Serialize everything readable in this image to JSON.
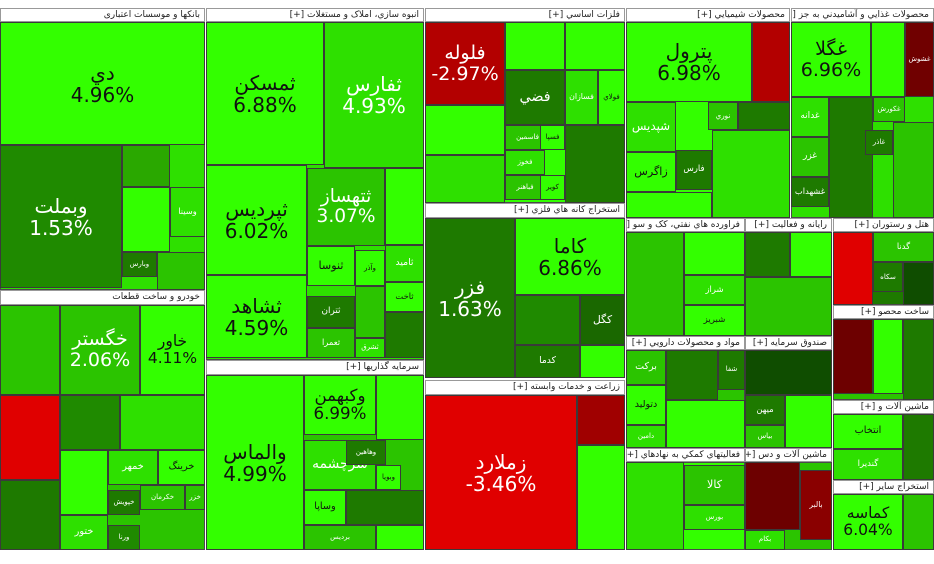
{
  "sectors": [
    {
      "header": "بانکها و موسسات اعتباری",
      "tiles": [
        {
          "label": "دي",
          "change": "4.96%",
          "color": "#33ff00"
        },
        {
          "label": "وبملت",
          "change": "1.53%",
          "color": "#1f8a00"
        },
        {
          "label": "وسينا",
          "color": "#2ee000"
        },
        {
          "label": "وبارس",
          "color": "#1e7a00"
        }
      ]
    },
    {
      "header": "خودرو و ساخت قطعات",
      "tiles": [
        {
          "label": "خگستر",
          "change": "2.06%",
          "color": "#2bc400"
        },
        {
          "label": "خاور",
          "change": "4.11%",
          "color": "#33ff00"
        },
        {
          "label": "خمهر",
          "color": "#2ee000"
        },
        {
          "label": "خرينگ",
          "color": "#33ff00"
        },
        {
          "label": "خکرمان",
          "color": "#2bc400"
        },
        {
          "label": "خپويش",
          "color": "#1e7a00"
        },
        {
          "label": "ختور",
          "color": "#2ee000"
        },
        {
          "label": "ورنا",
          "color": "#1f8a00"
        },
        {
          "label": "خزر",
          "color": "#2bc400"
        }
      ]
    },
    {
      "header": "انبوه سازي، املاک و مستغلات [+]",
      "tiles": [
        {
          "label": "ثمسکن",
          "change": "6.88%",
          "color": "#33ff00"
        },
        {
          "label": "ثفارس",
          "change": "4.93%",
          "color": "#2ee000"
        },
        {
          "label": "ثپرديس",
          "change": "6.02%",
          "color": "#33ff00"
        },
        {
          "label": "ثشاهد",
          "change": "4.59%",
          "color": "#33ff00"
        },
        {
          "label": "ثتهساز",
          "change": "3.07%",
          "color": "#2bc400"
        },
        {
          "label": "ثنوسا",
          "color": "#33ff00"
        },
        {
          "label": "ثتران",
          "color": "#1e7a00"
        },
        {
          "label": "ثامید",
          "color": "#2ee000"
        },
        {
          "label": "ثاخت",
          "color": "#33ff00"
        },
        {
          "label": "ثعمرا",
          "color": "#2bc400"
        },
        {
          "label": "ثشرق",
          "color": "#2ee000"
        },
        {
          "label": "وآذر",
          "color": "#33ff00"
        }
      ]
    },
    {
      "header": "سرمايه گذاريها [+]",
      "tiles": [
        {
          "label": "والماس",
          "change": "4.99%",
          "color": "#33ff00"
        },
        {
          "label": "وکبهمن",
          "change": "6.99%",
          "color": "#33ff00"
        },
        {
          "label": "سرچشمه",
          "color": "#2ee000"
        },
        {
          "label": "وساپا",
          "color": "#33ff00"
        },
        {
          "label": "برديس",
          "color": "#2bc400"
        },
        {
          "label": "وهاهين",
          "color": "#1e7a00"
        },
        {
          "label": "وبويا",
          "color": "#33ff00"
        }
      ]
    },
    {
      "header": "فلزات اساسي [+]",
      "tiles": [
        {
          "label": "فلوله",
          "change": "-2.97%",
          "color": "#b30000"
        },
        {
          "label": "فضي",
          "color": "#1e7a00"
        },
        {
          "label": "فسازان",
          "color": "#2ee000"
        },
        {
          "label": "فولاي",
          "color": "#33ff00"
        },
        {
          "label": "فاسمين",
          "color": "#2bc400"
        },
        {
          "label": "فسپا",
          "color": "#33ff00"
        },
        {
          "label": "فخوز",
          "color": "#2ee000"
        },
        {
          "label": "فباهنر",
          "color": "#2bc400"
        },
        {
          "label": "کوير",
          "color": "#33ff00"
        }
      ]
    },
    {
      "header": "استخراج کانه هاي فلزي [+]",
      "tiles": [
        {
          "label": "فزر",
          "change": "1.63%",
          "color": "#1e7a00"
        },
        {
          "label": "کاما",
          "change": "6.86%",
          "color": "#33ff00"
        },
        {
          "label": "کگل",
          "color": "#1a6800"
        },
        {
          "label": "کدما",
          "color": "#1e7a00"
        }
      ]
    },
    {
      "header": "زراعت و خدمات وابسته [+]",
      "tiles": [
        {
          "label": "زملارد",
          "change": "-3.46%",
          "color": "#e00000"
        }
      ]
    },
    {
      "header": "محصولات شيميايي [+]",
      "tiles": [
        {
          "label": "پترول",
          "change": "6.98%",
          "color": "#33ff00"
        },
        {
          "label": "شپديس",
          "color": "#2ee000"
        },
        {
          "label": "زاگرس",
          "color": "#33ff00"
        },
        {
          "label": "فارس",
          "color": "#1e7a00"
        },
        {
          "label": "نوري",
          "color": "#2bc400"
        }
      ]
    },
    {
      "header": "فراورده هاي نفتي، کک و سو [+]",
      "tiles": [
        {
          "label": "شراز",
          "color": "#2ee000"
        },
        {
          "label": "شبريز",
          "color": "#33ff00"
        }
      ]
    },
    {
      "header": "مواد و محصولات دارويي [+]",
      "tiles": [
        {
          "label": "برکت",
          "color": "#2bc400"
        },
        {
          "label": "دتوليد",
          "color": "#33ff00"
        },
        {
          "label": "دامين",
          "color": "#2ee000"
        },
        {
          "label": "شفا",
          "color": "#1e7a00"
        }
      ]
    },
    {
      "header": "فعاليتهاي کمکي به نهادهاي [+]",
      "tiles": [
        {
          "label": "کالا",
          "color": "#2bc400"
        },
        {
          "label": "بورس",
          "color": "#2ee000"
        }
      ]
    },
    {
      "header": "رايانه و فعاليت [+]",
      "tiles": []
    },
    {
      "header": "صندوق سرمايه [+]",
      "tiles": [
        {
          "label": "ميهن",
          "color": "#1e7a00"
        },
        {
          "label": "بياس",
          "color": "#2bc400"
        }
      ]
    },
    {
      "header": "ماشين آلات و دس [+]",
      "tiles": [
        {
          "label": "بالبر",
          "color": "#8a0000"
        },
        {
          "label": "بكام",
          "color": "#2ee000"
        }
      ]
    },
    {
      "header": "محصولات غذايي و آشاميدني به جز [+]",
      "tiles": [
        {
          "label": "غگلا",
          "change": "6.96%",
          "color": "#33ff00"
        },
        {
          "label": "غشوش",
          "color": "#700000"
        },
        {
          "label": "غدانه",
          "color": "#2ee000"
        },
        {
          "label": "غزر",
          "color": "#2bc400"
        },
        {
          "label": "غشهداب",
          "color": "#1e7a00"
        },
        {
          "label": "غکورش",
          "color": "#2bc400"
        },
        {
          "label": "غاذر",
          "color": "#1e7a00"
        }
      ]
    },
    {
      "header": "هتل و رستوران [+]",
      "tiles": [
        {
          "label": "گدنا",
          "color": "#2bc400"
        },
        {
          "label": "سکاه",
          "color": "#1e7a00"
        }
      ]
    },
    {
      "header": "ساخت محصو [+]",
      "tiles": []
    },
    {
      "header": "ماشين آلات و [+]",
      "tiles": [
        {
          "label": "انتخاب",
          "color": "#33ff00"
        },
        {
          "label": "گندیرا",
          "color": "#2ee000"
        }
      ]
    },
    {
      "header": "استخراج ساير [+]",
      "tiles": [
        {
          "label": "کماسه",
          "change": "6.04%",
          "color": "#33ff00"
        }
      ]
    }
  ]
}
